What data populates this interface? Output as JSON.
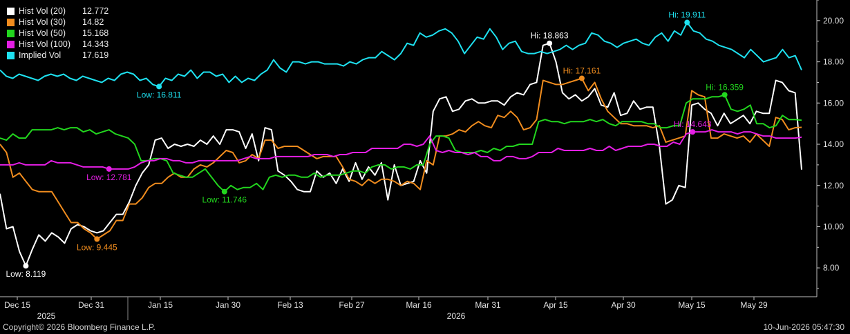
{
  "footer": {
    "copyright": "Copyright© 2026 Bloomberg Finance L.P.",
    "timestamp": "10-Jun-2026 05:47:30"
  },
  "chart_data": {
    "type": "line",
    "x_ticks": [
      "Dec 15",
      "Dec 31",
      "Jan 15",
      "Jan 30",
      "Feb 13",
      "Feb 27",
      "Mar 16",
      "Mar 31",
      "Apr 15",
      "Apr 30",
      "May 15",
      "May 29"
    ],
    "year_labels": [
      "2025",
      "2026"
    ],
    "y_ticks": [
      "8.00",
      "10.00",
      "12.00",
      "14.00",
      "16.00",
      "18.00",
      "20.00"
    ],
    "ylim": [
      6.6,
      21.0
    ],
    "grid": false,
    "legend_position": "top-left",
    "series": [
      {
        "name": "Hist Vol (20)",
        "last": "12.772",
        "color": "#ffffff",
        "values": [
          11.6,
          9.9,
          10.0,
          8.8,
          8.1,
          8.9,
          9.6,
          9.3,
          9.7,
          9.5,
          9.2,
          9.9,
          10.1,
          10.0,
          9.8,
          9.7,
          9.8,
          10.2,
          10.6,
          10.6,
          11.2,
          12.0,
          12.6,
          13.0,
          14.2,
          14.3,
          13.8,
          14.0,
          13.9,
          14.0,
          13.9,
          14.2,
          14.0,
          14.4,
          14.0,
          14.7,
          14.7,
          14.6,
          13.8,
          14.5,
          13.2,
          14.8,
          14.7,
          12.7,
          12.5,
          12.2,
          11.8,
          11.7,
          11.7,
          12.7,
          12.4,
          12.6,
          12.1,
          12.8,
          12.2,
          13.1,
          12.3,
          12.9,
          12.5,
          13.1,
          11.3,
          13.0,
          12.0,
          12.1,
          12.2,
          13.2,
          12.6,
          15.6,
          16.2,
          16.3,
          15.6,
          15.7,
          16.1,
          16.2,
          16.0,
          16.0,
          16.1,
          16.1,
          15.9,
          16.3,
          16.5,
          16.4,
          16.9,
          17.0,
          18.8,
          18.9,
          18.0,
          16.5,
          16.2,
          16.4,
          16.1,
          16.3,
          16.7,
          15.9,
          15.8,
          16.5,
          15.4,
          15.5,
          16.1,
          15.7,
          15.8,
          15.8,
          13.9,
          11.1,
          11.3,
          12.0,
          11.9,
          15.9,
          16.0,
          15.7,
          15.5,
          14.9,
          15.5,
          15.0,
          15.2,
          15.4,
          15.0,
          15.6,
          15.5,
          15.5,
          17.1,
          17.0,
          16.6,
          16.5,
          12.77
        ]
      },
      {
        "name": "Hist Vol (30)",
        "last": "14.82",
        "color": "#f08c1e",
        "values": [
          14.0,
          13.6,
          12.4,
          12.6,
          12.2,
          11.8,
          11.7,
          11.7,
          11.7,
          11.2,
          10.7,
          10.2,
          10.2,
          9.9,
          9.7,
          9.4,
          9.6,
          9.8,
          10.3,
          10.3,
          11.1,
          11.1,
          11.4,
          11.9,
          12.1,
          12.1,
          12.4,
          12.6,
          12.4,
          12.4,
          12.8,
          13.0,
          12.9,
          13.1,
          13.4,
          13.7,
          13.6,
          13.1,
          13.2,
          13.5,
          13.3,
          14.2,
          14.2,
          13.8,
          13.9,
          13.9,
          13.9,
          13.7,
          13.5,
          13.3,
          13.4,
          13.4,
          13.4,
          12.9,
          12.3,
          12.2,
          12.0,
          12.3,
          12.1,
          12.3,
          12.3,
          12.2,
          12.0,
          12.2,
          12.1,
          11.8,
          13.2,
          13.0,
          14.4,
          14.4,
          14.5,
          14.7,
          14.6,
          14.9,
          15.1,
          14.9,
          14.8,
          15.4,
          15.3,
          15.6,
          15.3,
          14.7,
          14.8,
          15.2,
          17.1,
          17.0,
          16.9,
          16.9,
          17.0,
          17.1,
          17.2,
          16.6,
          17.0,
          16.2,
          15.6,
          15.3,
          15.0,
          15.0,
          14.9,
          14.9,
          14.9,
          14.8,
          14.9,
          14.1,
          14.2,
          14.3,
          14.4,
          16.6,
          16.4,
          16.3,
          14.3,
          14.3,
          14.5,
          14.4,
          14.3,
          14.4,
          14.1,
          14.5,
          14.2,
          13.9,
          15.3,
          15.2,
          14.7,
          14.8,
          14.82
        ]
      },
      {
        "name": "Hist Vol (50)",
        "last": "15.168",
        "color": "#22d61e",
        "values": [
          14.3,
          14.2,
          14.5,
          14.3,
          14.3,
          14.7,
          14.7,
          14.7,
          14.7,
          14.8,
          14.7,
          14.8,
          14.8,
          14.6,
          14.7,
          14.5,
          14.6,
          14.7,
          14.5,
          14.4,
          14.3,
          14.0,
          13.2,
          13.2,
          13.3,
          13.3,
          13.2,
          12.6,
          12.5,
          12.4,
          12.4,
          12.6,
          12.8,
          12.4,
          12.0,
          11.7,
          12.0,
          11.8,
          11.9,
          11.9,
          12.1,
          11.8,
          12.4,
          12.5,
          12.4,
          12.5,
          12.5,
          12.4,
          12.4,
          12.6,
          12.4,
          12.5,
          12.5,
          12.5,
          12.6,
          12.7,
          12.7,
          12.6,
          12.9,
          13.0,
          13.0,
          12.8,
          12.9,
          12.9,
          12.8,
          13.0,
          13.0,
          14.0,
          14.4,
          14.4,
          14.3,
          13.7,
          13.6,
          13.6,
          13.6,
          13.7,
          13.6,
          13.8,
          13.7,
          13.9,
          13.9,
          14.0,
          14.0,
          14.0,
          15.1,
          15.2,
          15.1,
          15.1,
          15.0,
          15.1,
          15.1,
          15.1,
          15.2,
          15.1,
          15.2,
          15.0,
          14.9,
          15.1,
          15.1,
          15.1,
          15.1,
          15.0,
          15.0,
          14.8,
          14.8,
          14.9,
          14.9,
          16.0,
          16.2,
          16.2,
          16.2,
          16.3,
          16.3,
          16.4,
          15.7,
          15.6,
          15.7,
          15.9,
          15.0,
          15.0,
          14.8,
          14.9,
          15.4,
          15.2,
          15.2,
          15.168
        ]
      },
      {
        "name": "Hist Vol (100)",
        "last": "14.343",
        "color": "#e41ee4",
        "values": [
          13.0,
          13.0,
          13.0,
          13.1,
          13.0,
          13.0,
          13.0,
          13.0,
          13.2,
          13.1,
          13.1,
          13.1,
          13.0,
          12.9,
          12.9,
          12.9,
          12.9,
          12.8,
          12.8,
          12.8,
          12.8,
          12.9,
          13.1,
          13.2,
          13.2,
          13.3,
          13.3,
          13.2,
          13.2,
          13.1,
          13.1,
          13.2,
          13.2,
          13.2,
          13.2,
          13.2,
          13.2,
          13.2,
          13.3,
          13.4,
          13.3,
          13.3,
          13.3,
          13.4,
          13.4,
          13.4,
          13.4,
          13.4,
          13.4,
          13.5,
          13.5,
          13.5,
          13.4,
          13.5,
          13.5,
          13.6,
          13.6,
          13.6,
          13.8,
          13.8,
          13.8,
          13.8,
          13.8,
          14.0,
          14.0,
          13.9,
          14.0,
          14.4,
          13.7,
          13.6,
          13.7,
          13.6,
          13.6,
          13.5,
          13.6,
          13.4,
          13.4,
          13.2,
          13.2,
          13.4,
          13.4,
          13.3,
          13.3,
          13.4,
          13.6,
          13.6,
          13.6,
          13.8,
          13.7,
          13.7,
          13.7,
          13.7,
          13.8,
          13.7,
          13.7,
          13.9,
          13.7,
          13.8,
          13.9,
          13.9,
          13.9,
          14.0,
          14.0,
          13.9,
          13.9,
          14.1,
          14.0,
          14.5,
          14.6,
          14.6,
          14.6,
          14.7,
          14.6,
          14.6,
          14.6,
          14.5,
          14.6,
          14.6,
          14.5,
          14.4,
          14.4,
          14.3,
          14.3,
          14.3,
          14.3,
          14.343
        ]
      },
      {
        "name": "Implied Vol",
        "last": "17.619",
        "color": "#1ee1f0",
        "values": [
          17.6,
          17.3,
          17.2,
          17.4,
          17.3,
          17.2,
          17.1,
          17.3,
          17.4,
          17.3,
          17.4,
          17.2,
          17.1,
          17.3,
          17.2,
          17.1,
          17.0,
          17.2,
          17.1,
          17.4,
          17.5,
          17.4,
          17.1,
          17.2,
          16.9,
          16.8,
          17.2,
          17.1,
          17.4,
          17.3,
          17.6,
          17.2,
          17.5,
          17.5,
          17.3,
          17.4,
          17.0,
          17.3,
          17.0,
          17.2,
          17.1,
          17.4,
          17.6,
          18.1,
          17.7,
          17.5,
          18.0,
          18.0,
          17.9,
          18.0,
          18.0,
          17.9,
          17.9,
          17.9,
          17.8,
          18.0,
          17.9,
          18.1,
          18.2,
          18.2,
          18.5,
          18.3,
          18.1,
          18.4,
          18.9,
          18.8,
          19.4,
          19.2,
          19.3,
          19.5,
          19.6,
          19.4,
          19.0,
          18.4,
          18.8,
          19.2,
          19.1,
          19.6,
          19.2,
          18.6,
          18.9,
          19.0,
          18.5,
          18.4,
          18.4,
          18.5,
          18.4,
          18.5,
          18.6,
          18.8,
          18.6,
          18.8,
          18.9,
          19.4,
          19.3,
          19.0,
          18.9,
          18.7,
          18.9,
          19.0,
          19.1,
          18.9,
          18.8,
          19.2,
          19.4,
          19.0,
          19.5,
          19.3,
          19.911,
          19.5,
          19.4,
          19.1,
          19.0,
          18.8,
          18.7,
          18.6,
          18.4,
          18.2,
          18.6,
          18.3,
          18.0,
          18.1,
          18.2,
          18.6,
          18.2,
          18.3,
          17.6
        ]
      }
    ],
    "annotations": [
      {
        "text": "Low: 8.119",
        "series": 0,
        "value": 8.119,
        "color": "#ffffff"
      },
      {
        "text": "Hi: 18.863",
        "series": 0,
        "value": 18.863,
        "color": "#ffffff"
      },
      {
        "text": "Low: 9.445",
        "series": 1,
        "value": 9.445,
        "color": "#f08c1e"
      },
      {
        "text": "Hi: 17.161",
        "series": 1,
        "value": 17.161,
        "color": "#f08c1e"
      },
      {
        "text": "Low: 11.746",
        "series": 2,
        "value": 11.746,
        "color": "#22d61e"
      },
      {
        "text": "Hi: 16.359",
        "series": 2,
        "value": 16.359,
        "color": "#22d61e"
      },
      {
        "text": "Low: 12.781",
        "series": 3,
        "value": 12.781,
        "color": "#e41ee4"
      },
      {
        "text": "Hi: 14.643",
        "series": 3,
        "value": 14.643,
        "color": "#e41ee4"
      },
      {
        "text": "Low: 16.811",
        "series": 4,
        "value": 16.811,
        "color": "#1ee1f0"
      },
      {
        "text": "Hi: 19.911",
        "series": 4,
        "value": 19.911,
        "color": "#1ee1f0"
      }
    ]
  }
}
